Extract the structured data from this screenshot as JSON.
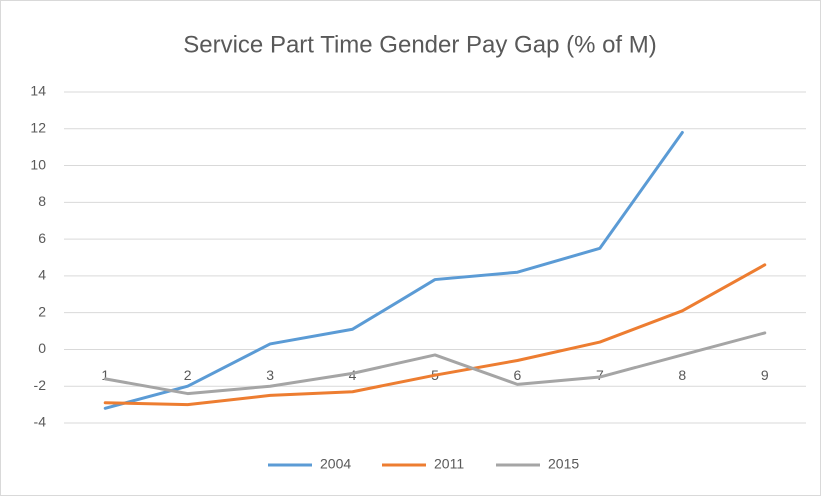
{
  "chart_data": {
    "type": "line",
    "title": "Service Part Time Gender Pay Gap (% of M)",
    "categories": [
      "1",
      "2",
      "3",
      "4",
      "5",
      "6",
      "7",
      "8",
      "9"
    ],
    "series": [
      {
        "name": "2004",
        "color": "#5b9bd5",
        "values": [
          -3.2,
          -2.0,
          0.3,
          1.1,
          3.8,
          4.2,
          5.5,
          11.8,
          null
        ]
      },
      {
        "name": "2011",
        "color": "#ed7d31",
        "values": [
          -2.9,
          -3.0,
          -2.5,
          -2.3,
          -1.4,
          -0.6,
          0.4,
          2.1,
          4.6
        ]
      },
      {
        "name": "2015",
        "color": "#a5a5a5",
        "values": [
          -1.6,
          -2.4,
          -2.0,
          -1.3,
          -0.3,
          -1.9,
          -1.5,
          -0.3,
          0.9
        ]
      }
    ],
    "ylim": [
      -4,
      14
    ],
    "yticks": [
      -4,
      -2,
      0,
      2,
      4,
      6,
      8,
      10,
      12,
      14
    ],
    "grid": true,
    "legend": "bottom"
  }
}
